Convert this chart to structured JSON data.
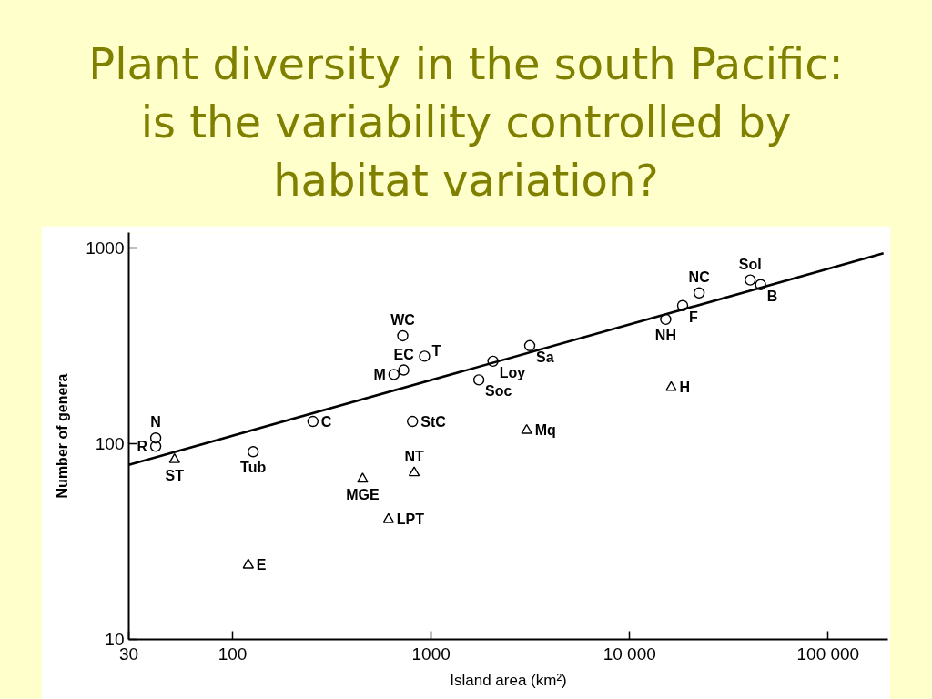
{
  "chart_data": {
    "type": "scatter",
    "title": "Plant diversity in the south Pacific: is the variability controlled by habitat variation?",
    "xlabel": "Island area (km²)",
    "ylabel": "Number of genera",
    "log": "xy",
    "xlim": [
      30,
      200000
    ],
    "ylim": [
      10,
      1200
    ],
    "xticks": [
      30,
      100,
      1000,
      {
        "value": 10000,
        "label": "10 000"
      },
      {
        "value": 100000,
        "label": "100 000"
      }
    ],
    "yticks": [
      10,
      100,
      1000
    ],
    "grid": false,
    "series": [
      {
        "marker": "circle",
        "color": "#000000",
        "x": [
          41,
          41,
          127,
          254,
          650,
          728,
          720,
          927,
          806,
          1740,
          2050,
          3140,
          15200,
          18500,
          22400,
          40500,
          45700
        ],
        "values": [
          107,
          97,
          91,
          130,
          226,
          238,
          356,
          280,
          130,
          212,
          264,
          317,
          432,
          508,
          590,
          687,
          650
        ],
        "value_labels": [
          "N",
          "R",
          "Tub",
          "C",
          "M",
          "EC",
          "WC",
          "T",
          "StC",
          "Soc",
          "Loy",
          "Sa",
          "NH",
          "F",
          "NC",
          "Sol",
          "B"
        ]
      },
      {
        "marker": "triangle",
        "color": "#000000",
        "x": [
          51,
          452,
          822,
          610,
          120,
          3030,
          16200
        ],
        "values": [
          83,
          66,
          71,
          41,
          24,
          117,
          194
        ],
        "value_labels": [
          "ST",
          "MGE",
          "NT",
          "LPT",
          "E",
          "Mq",
          "H"
        ]
      },
      {
        "type": "line",
        "color": "#000000",
        "line_style": "solid",
        "x": [
          30,
          190000
        ],
        "values": [
          78,
          940
        ]
      }
    ]
  }
}
